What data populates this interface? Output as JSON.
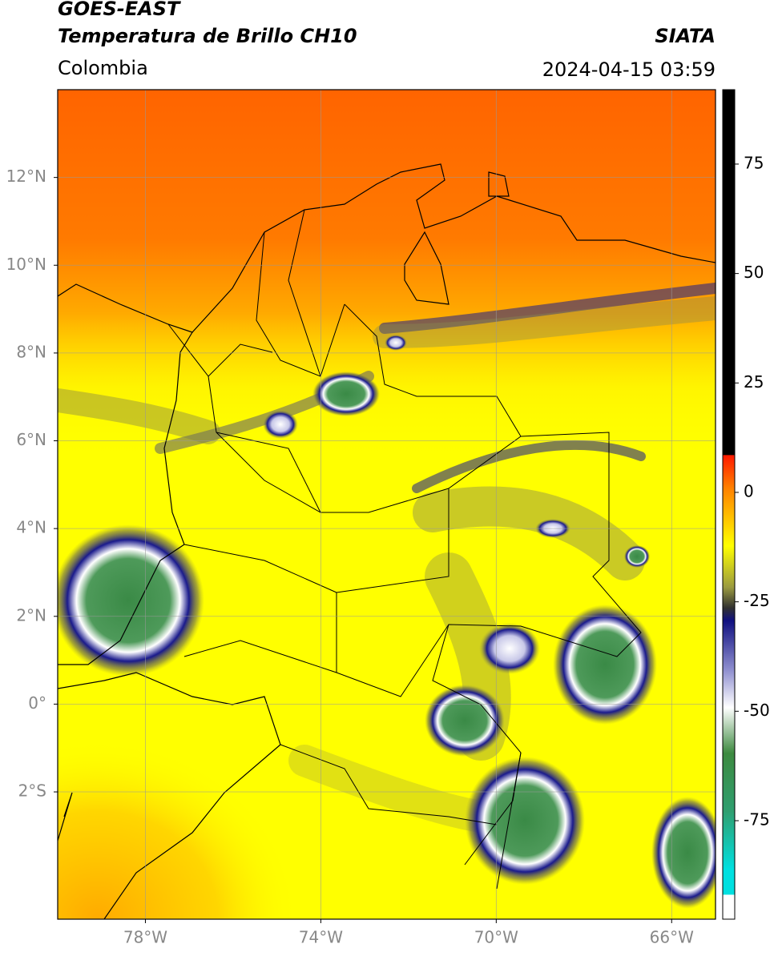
{
  "header": {
    "title": "GOES-EAST",
    "subtitle": "Temperatura de Brillo CH10",
    "source": "SIATA",
    "region": "Colombia",
    "datetime": "2024-04-15 03:59"
  },
  "map": {
    "xlim": [
      -80,
      -65
    ],
    "ylim": [
      -4.9,
      14
    ],
    "grid": true,
    "xticks": [
      {
        "value": -78,
        "label": "78°W"
      },
      {
        "value": -74,
        "label": "74°W"
      },
      {
        "value": -70,
        "label": "70°W"
      },
      {
        "value": -66,
        "label": "66°W"
      }
    ],
    "yticks": [
      {
        "value": 12,
        "label": "12°N"
      },
      {
        "value": 10,
        "label": "10°N"
      },
      {
        "value": 8,
        "label": "8°N"
      },
      {
        "value": 6,
        "label": "6°N"
      },
      {
        "value": 4,
        "label": "4°N"
      },
      {
        "value": 2,
        "label": "2°N"
      },
      {
        "value": 0,
        "label": "0°"
      },
      {
        "value": -2,
        "label": "2°S"
      }
    ]
  },
  "colorbar": {
    "lim": [
      -97.5,
      92
    ],
    "ticks": [
      75,
      50,
      25,
      0,
      -25,
      -50,
      -75
    ]
  }
}
